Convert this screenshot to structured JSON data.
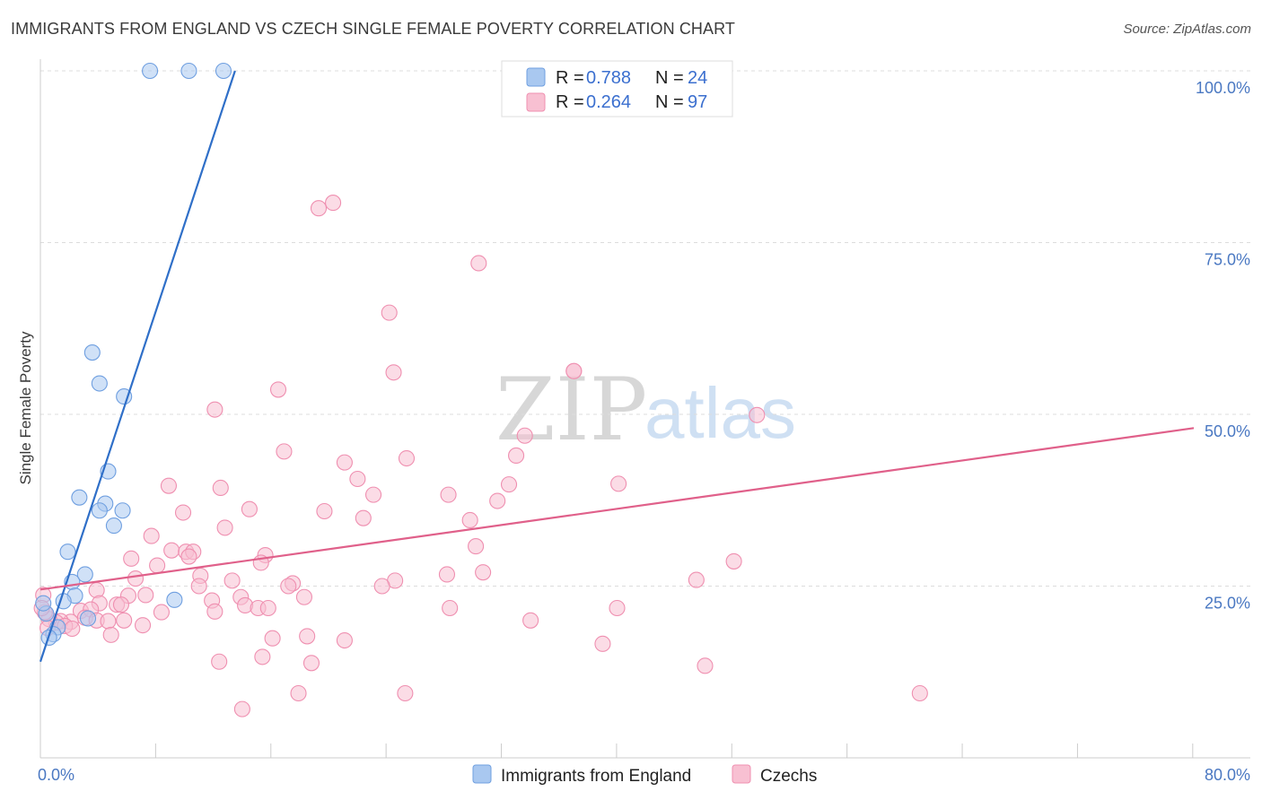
{
  "title": "IMMIGRANTS FROM ENGLAND VS CZECH SINGLE FEMALE POVERTY CORRELATION CHART",
  "source": "Source: ZipAtlas.com",
  "watermark": {
    "zip": "ZIP",
    "atlas": "atlas"
  },
  "legend": {
    "r_label": "R =",
    "n_label": "N =",
    "rows": [
      {
        "r": "0.788",
        "n": "24",
        "color": "#a9c8f0",
        "stroke": "#6f9fe0"
      },
      {
        "r": "0.264",
        "n": "97",
        "color": "#f8c0d2",
        "stroke": "#ef8fb0"
      }
    ]
  },
  "bottom_legend": [
    {
      "label": "Immigrants from England",
      "color": "#a9c8f0",
      "stroke": "#6f9fe0"
    },
    {
      "label": "Czechs",
      "color": "#f8c0d2",
      "stroke": "#ef8fb0"
    }
  ],
  "chart_data": {
    "type": "scatter",
    "title": "IMMIGRANTS FROM ENGLAND VS CZECH SINGLE FEMALE POVERTY CORRELATION CHART",
    "xlabel": "",
    "ylabel": "Single Female Poverty",
    "xlim": [
      0,
      80
    ],
    "ylim": [
      0,
      100
    ],
    "x_tick_labels": [
      "0.0%",
      "80.0%"
    ],
    "y_ticks": [
      25,
      50,
      75,
      100
    ],
    "y_tick_labels": [
      "25.0%",
      "50.0%",
      "75.0%",
      "100.0%"
    ],
    "series": [
      {
        "name": "Immigrants from England",
        "color": "#a9c8f0",
        "stroke": "#6f9fe0",
        "line_color": "#2f6fc8",
        "trend": {
          "x": [
            0,
            13.5
          ],
          "y": [
            14,
            100
          ]
        },
        "points": [
          [
            7.6,
            100
          ],
          [
            10.3,
            100
          ],
          [
            12.7,
            100
          ],
          [
            3.6,
            59
          ],
          [
            4.1,
            54.5
          ],
          [
            5.8,
            52.6
          ],
          [
            4.7,
            41.7
          ],
          [
            2.7,
            37.9
          ],
          [
            4.5,
            37
          ],
          [
            4.1,
            36
          ],
          [
            5.7,
            36
          ],
          [
            5.1,
            33.8
          ],
          [
            1.9,
            30
          ],
          [
            3.1,
            26.7
          ],
          [
            2.2,
            25.6
          ],
          [
            2.4,
            23.6
          ],
          [
            1.6,
            22.8
          ],
          [
            9.3,
            23
          ],
          [
            3.3,
            20.3
          ],
          [
            1.2,
            19
          ],
          [
            0.9,
            18
          ],
          [
            0.6,
            17.5
          ],
          [
            0.4,
            21
          ],
          [
            0.2,
            22.5
          ]
        ]
      },
      {
        "name": "Czechs",
        "color": "#f8c0d2",
        "stroke": "#ef8fb0",
        "line_color": "#e0608a",
        "trend": {
          "x": [
            0,
            80
          ],
          "y": [
            24.5,
            48
          ]
        },
        "points": [
          [
            20.3,
            80.8
          ],
          [
            19.3,
            80.0
          ],
          [
            30.4,
            72.0
          ],
          [
            24.2,
            64.8
          ],
          [
            37.0,
            56.3
          ],
          [
            37.0,
            56.3
          ],
          [
            24.5,
            56.1
          ],
          [
            16.5,
            53.6
          ],
          [
            49.7,
            49.9
          ],
          [
            12.1,
            50.7
          ],
          [
            33.6,
            46.9
          ],
          [
            16.9,
            44.6
          ],
          [
            25.4,
            43.6
          ],
          [
            21.1,
            43.0
          ],
          [
            33.0,
            44.0
          ],
          [
            22.0,
            40.6
          ],
          [
            40.1,
            39.9
          ],
          [
            32.5,
            39.8
          ],
          [
            8.9,
            39.6
          ],
          [
            12.5,
            39.3
          ],
          [
            23.1,
            38.3
          ],
          [
            28.3,
            38.3
          ],
          [
            31.7,
            37.4
          ],
          [
            14.5,
            36.2
          ],
          [
            19.7,
            35.9
          ],
          [
            9.9,
            35.7
          ],
          [
            22.4,
            34.9
          ],
          [
            29.8,
            34.6
          ],
          [
            12.8,
            33.5
          ],
          [
            7.7,
            32.3
          ],
          [
            30.2,
            30.8
          ],
          [
            9.1,
            30.2
          ],
          [
            10.1,
            30.0
          ],
          [
            10.6,
            30.0
          ],
          [
            15.6,
            29.5
          ],
          [
            10.3,
            29.3
          ],
          [
            6.3,
            29.0
          ],
          [
            15.3,
            28.4
          ],
          [
            8.1,
            28.0
          ],
          [
            48.1,
            28.6
          ],
          [
            30.7,
            27.0
          ],
          [
            28.2,
            26.7
          ],
          [
            11.1,
            26.5
          ],
          [
            6.6,
            26.1
          ],
          [
            24.6,
            25.8
          ],
          [
            13.3,
            25.8
          ],
          [
            45.5,
            25.9
          ],
          [
            17.5,
            25.4
          ],
          [
            23.7,
            25.0
          ],
          [
            17.2,
            25.0
          ],
          [
            11.0,
            25.0
          ],
          [
            3.9,
            24.4
          ],
          [
            7.3,
            23.7
          ],
          [
            6.1,
            23.6
          ],
          [
            18.3,
            23.4
          ],
          [
            13.9,
            23.4
          ],
          [
            11.9,
            22.9
          ],
          [
            4.1,
            22.5
          ],
          [
            5.3,
            22.3
          ],
          [
            5.6,
            22.3
          ],
          [
            2.8,
            21.4
          ],
          [
            3.5,
            21.6
          ],
          [
            14.2,
            22.2
          ],
          [
            15.1,
            21.8
          ],
          [
            15.8,
            21.8
          ],
          [
            12.1,
            21.3
          ],
          [
            8.4,
            21.2
          ],
          [
            28.4,
            21.8
          ],
          [
            40.0,
            21.8
          ],
          [
            3.1,
            20.4
          ],
          [
            3.9,
            20.0
          ],
          [
            5.8,
            20.0
          ],
          [
            2.1,
            19.8
          ],
          [
            1.4,
            19.9
          ],
          [
            1.1,
            19.7
          ],
          [
            0.6,
            20.2
          ],
          [
            0.3,
            21.2
          ],
          [
            0.2,
            23.7
          ],
          [
            4.7,
            19.9
          ],
          [
            34.0,
            20.0
          ],
          [
            1.7,
            19.2
          ],
          [
            2.2,
            18.8
          ],
          [
            7.1,
            19.3
          ],
          [
            4.9,
            17.9
          ],
          [
            16.1,
            17.4
          ],
          [
            18.5,
            17.7
          ],
          [
            21.1,
            17.1
          ],
          [
            39.0,
            16.6
          ],
          [
            12.4,
            14.0
          ],
          [
            15.4,
            14.7
          ],
          [
            18.8,
            13.8
          ],
          [
            46.1,
            13.4
          ],
          [
            17.9,
            9.4
          ],
          [
            25.3,
            9.4
          ],
          [
            61.0,
            9.4
          ],
          [
            14.0,
            7.1
          ],
          [
            0.1,
            21.8
          ],
          [
            0.5,
            18.9
          ]
        ]
      }
    ]
  }
}
